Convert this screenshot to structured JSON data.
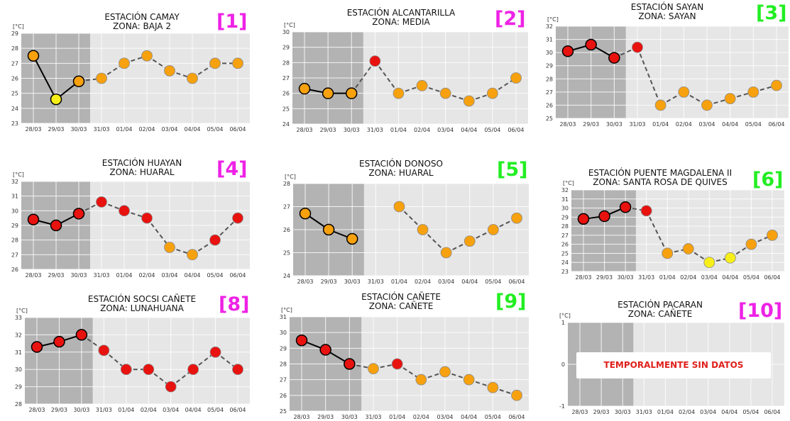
{
  "colors": {
    "high": "#e8120f",
    "mid": "#f7a10f",
    "low": "#f8ef19",
    "observed_bg": "#b3b3b3",
    "forecast_bg": "#e6e6e6",
    "label_pink": "#ee22e6",
    "label_green": "#22ee22",
    "nodata_text": "#e0201b"
  },
  "unit_label": "[°C]",
  "dates": [
    "28/03",
    "29/03",
    "30/03",
    "31/03",
    "01/04",
    "02/04",
    "03/04",
    "04/04",
    "05/04",
    "06/04"
  ],
  "chart_data": [
    {
      "type": "line",
      "badge": "[1]",
      "badge_color": "pink",
      "title_line1": "ESTACIÓN CAMAY",
      "title_line2": "ZONA: BAJA 2",
      "ylim": [
        23,
        29
      ],
      "yticks": [
        23,
        24,
        25,
        26,
        27,
        28,
        29
      ],
      "values": [
        27.5,
        24.6,
        25.8,
        26.0,
        27.0,
        27.5,
        26.5,
        26.0,
        27.0,
        27.0
      ],
      "levels": [
        "mid",
        "low",
        "mid",
        "mid",
        "mid",
        "mid",
        "mid",
        "mid",
        "mid",
        "mid"
      ]
    },
    {
      "type": "line",
      "badge": "[2]",
      "badge_color": "pink",
      "title_line1": "ESTACIÓN ALCANTARILLA",
      "title_line2": "ZONA: MEDIA",
      "ylim": [
        24,
        30
      ],
      "yticks": [
        24,
        25,
        26,
        27,
        28,
        29,
        30
      ],
      "values": [
        26.3,
        26.0,
        26.0,
        28.1,
        26.0,
        26.5,
        26.0,
        25.5,
        26.0,
        27.0
      ],
      "levels": [
        "mid",
        "mid",
        "mid",
        "high",
        "mid",
        "mid",
        "mid",
        "mid",
        "mid",
        "mid"
      ]
    },
    {
      "type": "line",
      "badge": "[3]",
      "badge_color": "green",
      "title_line1": "ESTACIÓN SAYAN",
      "title_line2": "ZONA: SAYAN",
      "ylim": [
        25,
        32
      ],
      "yticks": [
        25,
        26,
        27,
        28,
        29,
        30,
        31,
        32
      ],
      "values": [
        30.1,
        30.6,
        29.6,
        30.4,
        26.0,
        27.0,
        26.0,
        26.5,
        27.0,
        27.5
      ],
      "levels": [
        "high",
        "high",
        "high",
        "high",
        "mid",
        "mid",
        "mid",
        "mid",
        "mid",
        "mid"
      ]
    },
    {
      "type": "line",
      "badge": "[4]",
      "badge_color": "pink",
      "title_line1": "ESTACIÓN HUAYAN",
      "title_line2": "ZONA: HUARAL",
      "ylim": [
        26,
        32
      ],
      "yticks": [
        26,
        27,
        28,
        29,
        30,
        31,
        32
      ],
      "values": [
        29.4,
        29.0,
        29.8,
        30.6,
        30.0,
        29.5,
        27.5,
        27.0,
        28.0,
        29.5
      ],
      "levels": [
        "high",
        "high",
        "high",
        "high",
        "high",
        "high",
        "mid",
        "mid",
        "high",
        "high"
      ]
    },
    {
      "type": "line",
      "badge": "[5]",
      "badge_color": "green",
      "title_line1": "ESTACIÓN DONOSO",
      "title_line2": "ZONA: HUARAL",
      "ylim": [
        24,
        28
      ],
      "yticks": [
        24,
        25,
        26,
        27,
        28
      ],
      "values": [
        26.7,
        26.0,
        25.6,
        null,
        27.0,
        26.0,
        25.0,
        25.5,
        26.0,
        26.5
      ],
      "levels": [
        "mid",
        "mid",
        "mid",
        null,
        "mid",
        "mid",
        "mid",
        "mid",
        "mid",
        "mid"
      ]
    },
    {
      "type": "line",
      "badge": "[6]",
      "badge_color": "green",
      "title_line1": "ESTACIÓN PUENTE MAGDALENA II",
      "title_line2": "ZONA: SANTA ROSA DE QUIVES",
      "ylim": [
        23,
        32
      ],
      "yticks": [
        23,
        24,
        25,
        26,
        27,
        28,
        29,
        30,
        31,
        32
      ],
      "values": [
        28.8,
        29.1,
        30.1,
        29.7,
        25.0,
        25.5,
        24.0,
        24.5,
        26.0,
        27.0
      ],
      "levels": [
        "high",
        "high",
        "high",
        "high",
        "mid",
        "mid",
        "low",
        "low",
        "mid",
        "mid"
      ]
    },
    {
      "type": "line",
      "badge": "[8]",
      "badge_color": "pink",
      "title_line1": "ESTACIÓN SOCSI CAÑETE",
      "title_line2": "ZONA: LUNAHUANA",
      "ylim": [
        28,
        33
      ],
      "yticks": [
        28,
        29,
        30,
        31,
        32,
        33
      ],
      "values": [
        31.3,
        31.6,
        32.0,
        31.1,
        30.0,
        30.0,
        29.0,
        30.0,
        31.0,
        30.0
      ],
      "levels": [
        "high",
        "high",
        "high",
        "high",
        "high",
        "high",
        "high",
        "high",
        "high",
        "high"
      ]
    },
    {
      "type": "line",
      "badge": "[9]",
      "badge_color": "green",
      "title_line1": "ESTACIÓN CAÑETE",
      "title_line2": "ZONA: CAÑETE",
      "ylim": [
        25,
        31
      ],
      "yticks": [
        25,
        26,
        27,
        28,
        29,
        30,
        31
      ],
      "values": [
        29.5,
        28.9,
        28.0,
        27.7,
        28.0,
        27.0,
        27.5,
        27.0,
        26.5,
        26.0
      ],
      "levels": [
        "high",
        "high",
        "high",
        "mid",
        "high",
        "mid",
        "mid",
        "mid",
        "mid",
        "mid"
      ]
    },
    {
      "type": "line",
      "badge": "[10]",
      "badge_color": "pink",
      "title_line1": "ESTACIÓN PACARAN",
      "title_line2": "ZONA: CAÑETE",
      "ylim": [
        -1,
        1
      ],
      "yticks": [
        -1,
        0,
        1
      ],
      "values": [
        null,
        null,
        null,
        null,
        null,
        null,
        null,
        null,
        null,
        null
      ],
      "levels": [
        null,
        null,
        null,
        null,
        null,
        null,
        null,
        null,
        null,
        null
      ],
      "annotation": "TEMPORALMENTE SIN DATOS"
    }
  ]
}
